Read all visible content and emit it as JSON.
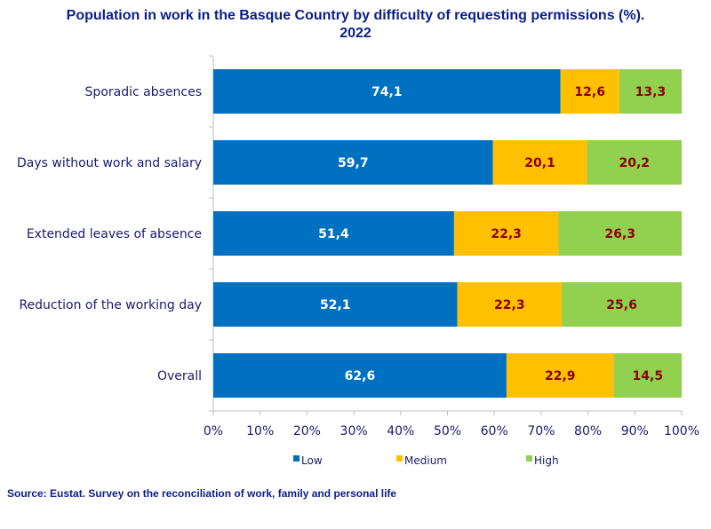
{
  "chart_data": {
    "type": "bar",
    "orientation": "horizontal",
    "stacked": true,
    "title": "Population in work in the Basque Country by difficulty of requesting permissions (%).\n2022",
    "categories": [
      "Sporadic absences",
      "Days without work and salary",
      "Extended leaves of absence",
      "Reduction of the working day",
      "Overall"
    ],
    "series": [
      {
        "name": "Low",
        "color": "#0070c0",
        "label_color": "#ffffff",
        "values": [
          74.1,
          59.7,
          51.4,
          52.1,
          62.6
        ],
        "labels": [
          "74,1",
          "59,7",
          "51,4",
          "52,1",
          "62,6"
        ]
      },
      {
        "name": "Medium",
        "color": "#ffc000",
        "label_color": "#8b0000",
        "values": [
          12.6,
          20.1,
          22.3,
          22.3,
          22.9
        ],
        "labels": [
          "12,6",
          "20,1",
          "22,3",
          "22,3",
          "22,9"
        ]
      },
      {
        "name": "High",
        "color": "#92d050",
        "label_color": "#8b0000",
        "values": [
          13.3,
          20.2,
          26.3,
          25.6,
          14.5
        ],
        "labels": [
          "13,3",
          "20,2",
          "26,3",
          "25,6",
          "14,5"
        ]
      }
    ],
    "x_ticks": [
      "0%",
      "10%",
      "20%",
      "30%",
      "40%",
      "50%",
      "60%",
      "70%",
      "80%",
      "90%",
      "100%"
    ],
    "xlim": [
      0,
      100
    ],
    "xlabel": "",
    "ylabel": "",
    "grid": false,
    "legend_position": "bottom"
  },
  "source": "Source: Eustat. Survey on the reconciliation of work, family and personal life"
}
